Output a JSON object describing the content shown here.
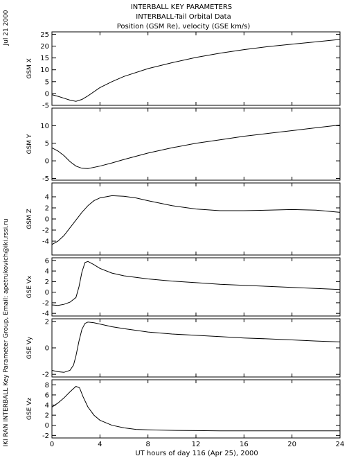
{
  "side_text": {
    "date": "Jul 21 2000",
    "credit": "IKI RAN INTERBALL Key Parameter Group, Email: apetrukovich@iki.rssi.ru"
  },
  "chart_data": {
    "type": "line",
    "title": [
      "INTERBALL KEY PARAMETERS",
      "INTERBALL-Tail Orbital Data",
      "Position (GSM Re), velocity (GSE km/s)"
    ],
    "xlabel": "UT hours of day 116 (Apr 25), 2000",
    "xlim": [
      0,
      24
    ],
    "xticks": [
      0,
      4,
      8,
      12,
      16,
      20,
      24
    ],
    "panels": [
      {
        "name": "GSM X",
        "ylim": [
          -5,
          26
        ],
        "yticks": [
          -5,
          0,
          5,
          10,
          15,
          20,
          25
        ],
        "x": [
          0,
          0.5,
          1,
          1.5,
          2,
          2.5,
          3,
          4,
          5,
          6,
          8,
          10,
          12,
          14,
          16,
          18,
          20,
          22,
          24
        ],
        "y": [
          -0.5,
          -1.2,
          -2,
          -2.8,
          -3.3,
          -2.5,
          -1,
          2.5,
          5,
          7.2,
          10.5,
          13,
          15.2,
          17,
          18.5,
          19.8,
          20.8,
          21.8,
          22.8
        ]
      },
      {
        "name": "GSM Y",
        "ylim": [
          -5.5,
          15
        ],
        "yticks": [
          -5,
          0,
          5,
          10
        ],
        "x": [
          0,
          0.5,
          1,
          1.5,
          2,
          2.5,
          3,
          4,
          5,
          6,
          8,
          10,
          12,
          14,
          16,
          18,
          20,
          22,
          24
        ],
        "y": [
          3.7,
          2.8,
          1.5,
          -0.2,
          -1.5,
          -2.1,
          -2.2,
          -1.5,
          -0.6,
          0.4,
          2.2,
          3.7,
          5,
          6,
          7,
          7.8,
          8.6,
          9.4,
          10.2
        ]
      },
      {
        "name": "GSM Z",
        "ylim": [
          -6.5,
          6.5
        ],
        "yticks": [
          -4,
          -2,
          0,
          2,
          4
        ],
        "x": [
          0,
          0.5,
          1,
          1.5,
          2,
          2.5,
          3,
          3.5,
          4,
          5,
          6,
          7,
          8,
          10,
          12,
          14,
          16,
          18,
          20,
          22,
          24
        ],
        "y": [
          -4.6,
          -4,
          -3,
          -1.6,
          -0.2,
          1.2,
          2.4,
          3.3,
          3.8,
          4.2,
          4.1,
          3.8,
          3.3,
          2.4,
          1.8,
          1.5,
          1.5,
          1.6,
          1.7,
          1.6,
          1.2
        ]
      },
      {
        "name": "GSE Vx",
        "ylim": [
          -4.5,
          6.5
        ],
        "yticks": [
          -4,
          -2,
          0,
          2,
          4,
          6
        ],
        "x": [
          0,
          0.5,
          1,
          1.5,
          2,
          2.25,
          2.5,
          2.75,
          3,
          3.5,
          4,
          5,
          6,
          8,
          10,
          12,
          14,
          16,
          18,
          20,
          22,
          24
        ],
        "y": [
          -2.4,
          -2.5,
          -2.3,
          -1.9,
          -1,
          1,
          3.8,
          5.6,
          5.8,
          5.2,
          4.5,
          3.6,
          3.1,
          2.5,
          2.1,
          1.8,
          1.5,
          1.3,
          1.1,
          0.9,
          0.7,
          0.5
        ]
      },
      {
        "name": "GSE Vy",
        "ylim": [
          -2.2,
          2.2
        ],
        "yticks": [
          -2,
          0,
          2
        ],
        "x": [
          0,
          0.5,
          1,
          1.5,
          1.8,
          2,
          2.25,
          2.5,
          2.75,
          3,
          3.5,
          4,
          5,
          6,
          8,
          10,
          12,
          14,
          16,
          18,
          20,
          22,
          24
        ],
        "y": [
          -1.7,
          -1.8,
          -1.85,
          -1.7,
          -1.3,
          -0.6,
          0.5,
          1.4,
          1.85,
          1.95,
          1.9,
          1.8,
          1.6,
          1.45,
          1.2,
          1.05,
          0.95,
          0.85,
          0.75,
          0.68,
          0.6,
          0.52,
          0.45
        ]
      },
      {
        "name": "GSE Vz",
        "ylim": [
          -2.5,
          9
        ],
        "yticks": [
          -2,
          0,
          2,
          4,
          6,
          8
        ],
        "x": [
          0,
          0.5,
          1,
          1.5,
          2,
          2.3,
          2.6,
          3,
          3.5,
          4,
          5,
          6,
          7,
          8,
          10,
          12,
          14,
          16,
          18,
          20,
          22,
          24
        ],
        "y": [
          3.6,
          4.4,
          5.4,
          6.6,
          7.7,
          7.4,
          5.6,
          3.6,
          2,
          1,
          0,
          -0.5,
          -0.8,
          -0.9,
          -1,
          -1.05,
          -1.1,
          -1.1,
          -1.1,
          -1.1,
          -1.1,
          -1.1
        ]
      }
    ]
  }
}
